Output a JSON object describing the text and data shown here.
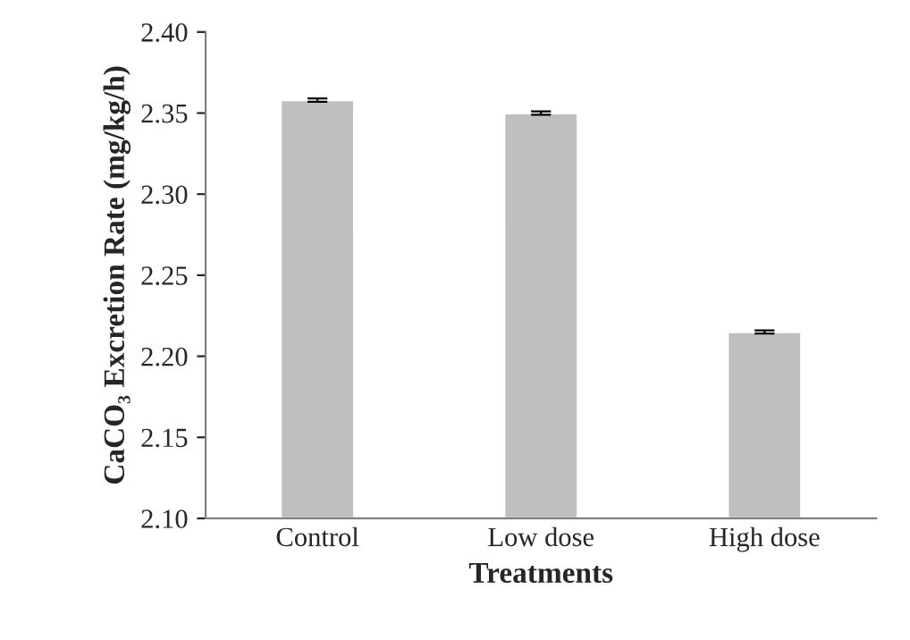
{
  "chart_data": {
    "type": "bar",
    "xlabel": "Treatments",
    "ylabel": "CaCO₃ Excretion Rate (mg/kg/h)",
    "categories": [
      "Control",
      "Low dose",
      "High dose"
    ],
    "values": [
      2.358,
      2.35,
      2.215
    ],
    "errors": [
      0.001,
      0.001,
      0.001
    ],
    "color": "#bfbfbf",
    "ylim": [
      2.1,
      2.4
    ],
    "yticks": [
      {
        "value": 2.1,
        "label": "2.10"
      },
      {
        "value": 2.15,
        "label": "2.15"
      },
      {
        "value": 2.2,
        "label": "2.20"
      },
      {
        "value": 2.25,
        "label": "2.25"
      },
      {
        "value": 2.3,
        "label": "2.30"
      },
      {
        "value": 2.35,
        "label": "2.35"
      },
      {
        "value": 2.4,
        "label": "2.40"
      }
    ],
    "grid": false,
    "legend": false
  }
}
